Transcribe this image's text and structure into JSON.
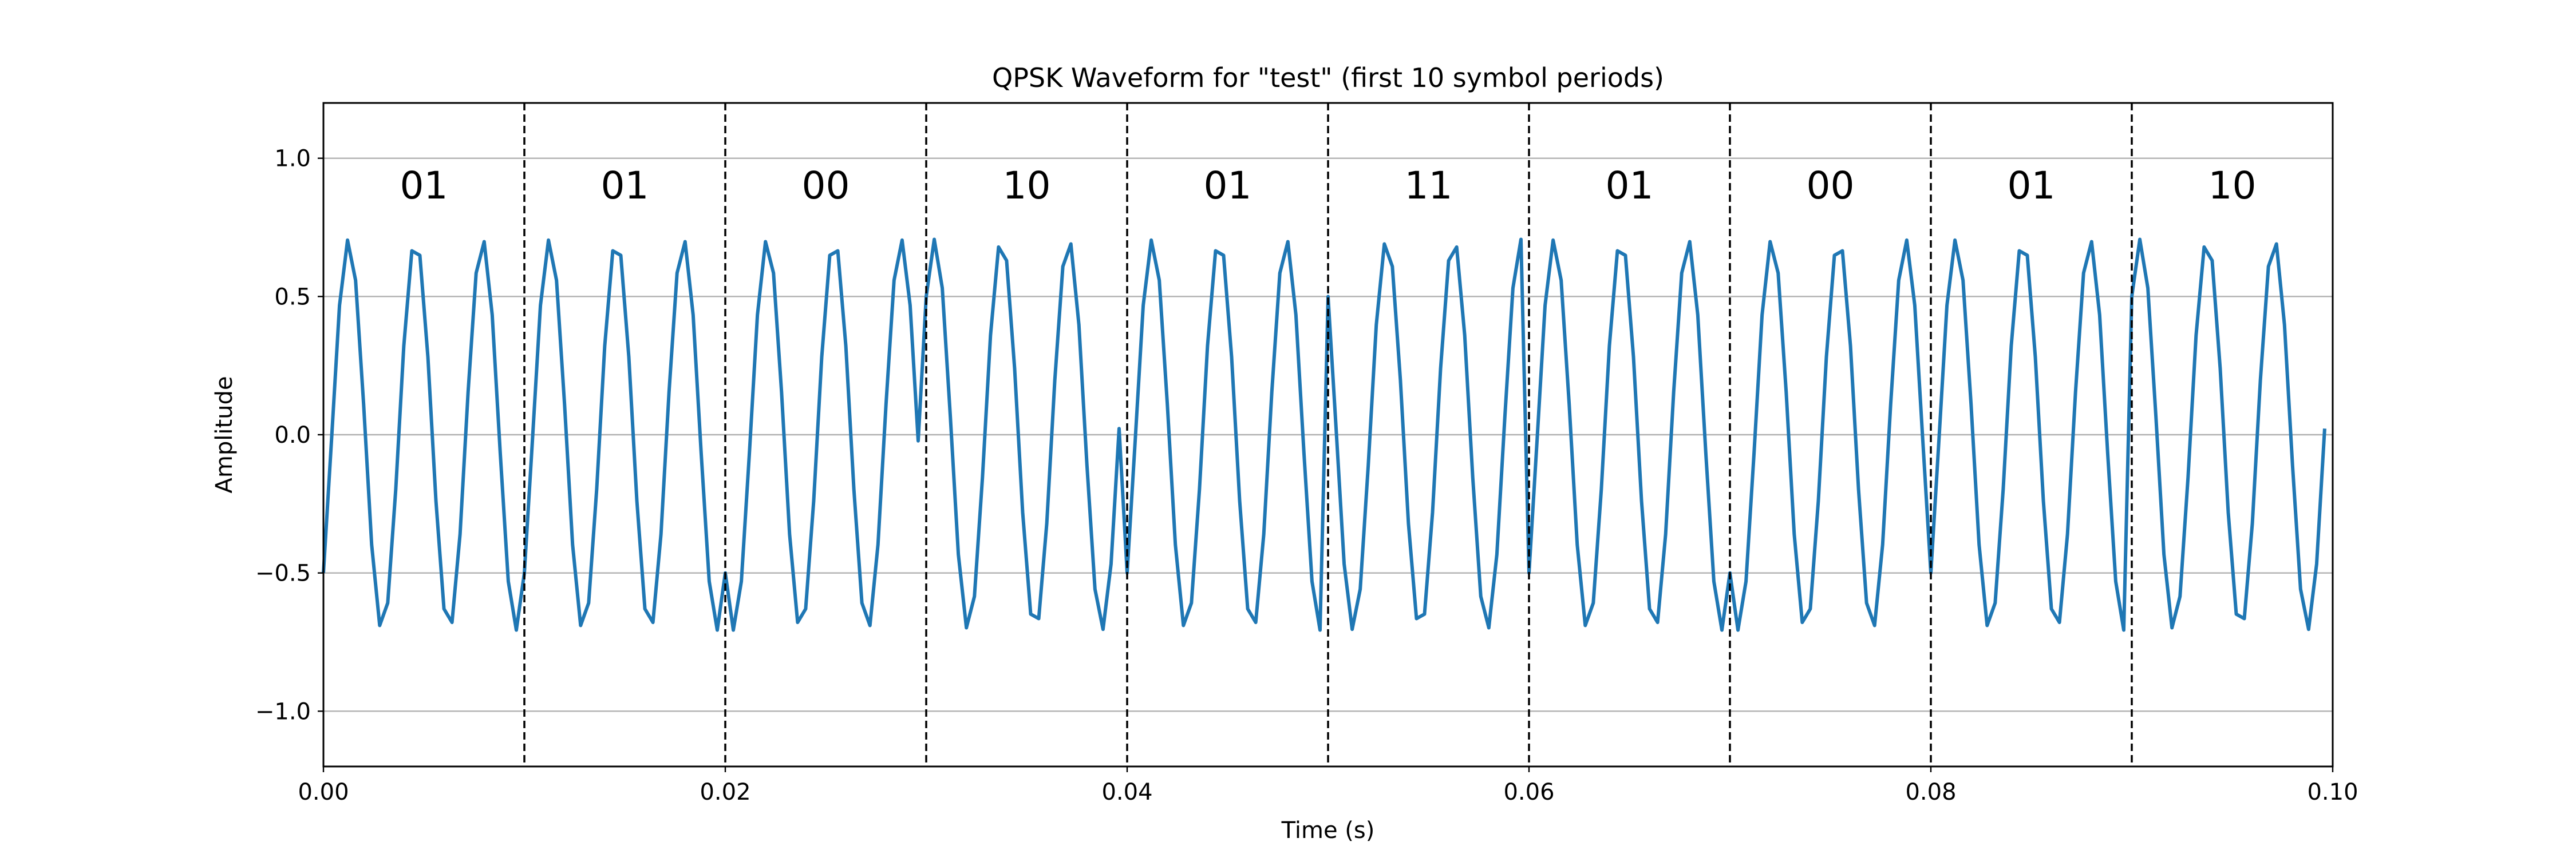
{
  "chart_data": {
    "type": "line",
    "title": "QPSK Waveform for \"test\" (first 10 symbol periods)",
    "xlabel": "Time (s)",
    "ylabel": "Amplitude",
    "xlim": [
      0.0,
      0.1
    ],
    "ylim": [
      -1.2,
      1.2
    ],
    "x_ticks": [
      0.0,
      0.02,
      0.04,
      0.06,
      0.08,
      0.1
    ],
    "x_tick_labels": [
      "0.00",
      "0.02",
      "0.04",
      "0.06",
      "0.08",
      "0.10"
    ],
    "y_ticks": [
      -1.0,
      -0.5,
      0.0,
      0.5,
      1.0
    ],
    "y_tick_labels": [
      "−1.0",
      "−0.5",
      "0.0",
      "0.5",
      "1.0"
    ],
    "grid": "horizontal",
    "symbol_period": 0.01,
    "symbol_boundaries": [
      0.01,
      0.02,
      0.03,
      0.04,
      0.05,
      0.06,
      0.07,
      0.08,
      0.09
    ],
    "symbols": [
      "01",
      "01",
      "00",
      "10",
      "01",
      "11",
      "01",
      "00",
      "01",
      "10"
    ],
    "carrier_frequency": 300,
    "amplitude": 0.707,
    "symbol_phases_deg": [
      225,
      225,
      135,
      315,
      225,
      45,
      225,
      135,
      225,
      315
    ],
    "line_color": "#1f77b4"
  }
}
